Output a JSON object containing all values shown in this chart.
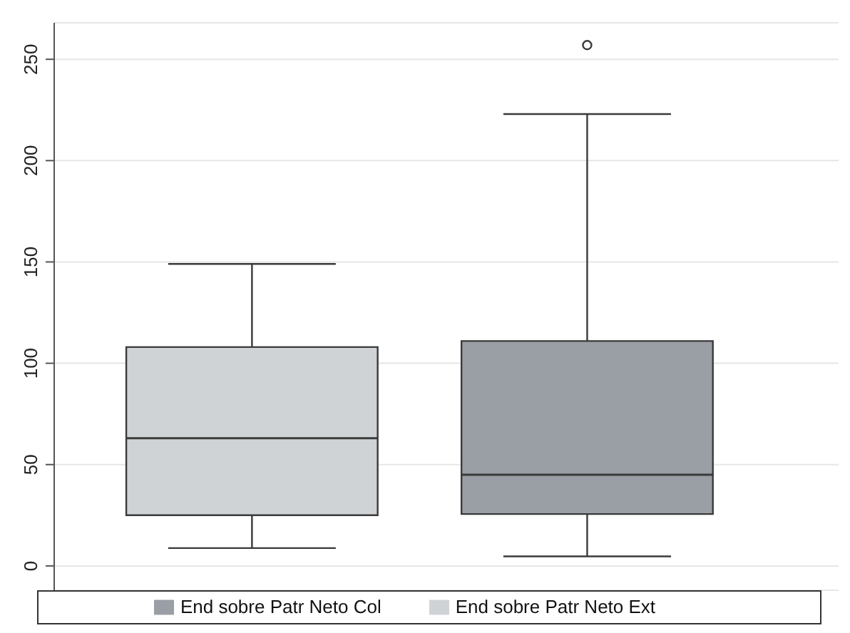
{
  "chart_data": {
    "type": "box",
    "categories": [
      null
    ],
    "series": [
      {
        "name": "End sobre Patr Neto Ext",
        "color": "#d0d3d6",
        "boxes": [
          {
            "low": 8.8,
            "q1": 25,
            "median": 63,
            "q3": 108,
            "high": 149
          }
        ]
      },
      {
        "name": "End sobre Patr Neto Col",
        "color": "#9a9ea5",
        "boxes": [
          {
            "low": 4.7,
            "q1": 25.6,
            "median": 45,
            "q3": 111,
            "high": 223,
            "outliers": [
              257
            ]
          }
        ]
      }
    ],
    "ylim": [
      -12,
      268
    ],
    "yticks": [
      0,
      50,
      100,
      150,
      200,
      250
    ],
    "grid": "y",
    "legend": "bottom",
    "tick_labels": "y"
  }
}
